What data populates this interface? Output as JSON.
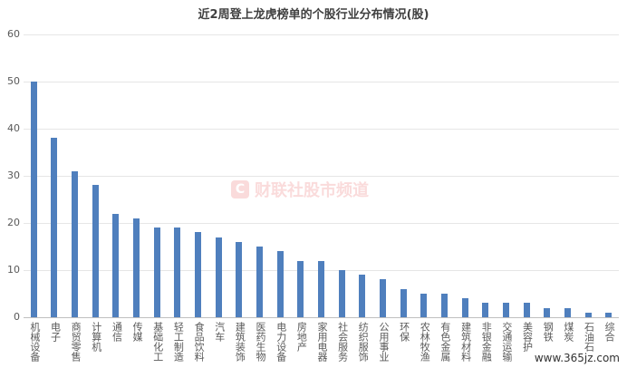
{
  "chart_data": {
    "type": "bar",
    "title": "近2周登上龙虎榜单的个股行业分布情况(股)",
    "categories": [
      "机械设备",
      "电子",
      "商贸零售",
      "计算机",
      "通信",
      "传媒",
      "基础化工",
      "轻工制造",
      "食品饮料",
      "汽车",
      "建筑装饰",
      "医药生物",
      "电力设备",
      "房地产",
      "家用电器",
      "社会服务",
      "纺织服饰",
      "公用事业",
      "环保",
      "农林牧渔",
      "有色金属",
      "建筑材料",
      "非银金融",
      "交通运输",
      "美容护",
      "钢铁",
      "煤炭",
      "石油石",
      "综合"
    ],
    "values": [
      50,
      38,
      31,
      28,
      22,
      21,
      19,
      19,
      18,
      17,
      16,
      15,
      14,
      12,
      12,
      10,
      9,
      8,
      6,
      5,
      5,
      4,
      3,
      3,
      3,
      2,
      2,
      1,
      1
    ],
    "yticks": [
      0,
      10,
      20,
      30,
      40,
      50,
      60
    ],
    "ylim": [
      0,
      60
    ],
    "grid": true,
    "legend": "none",
    "bar_color": "#4f7fbd"
  },
  "watermark": {
    "icon_glyph": "C",
    "text": "财联社股市频道"
  },
  "corner_watermark": "www.365jz.com"
}
